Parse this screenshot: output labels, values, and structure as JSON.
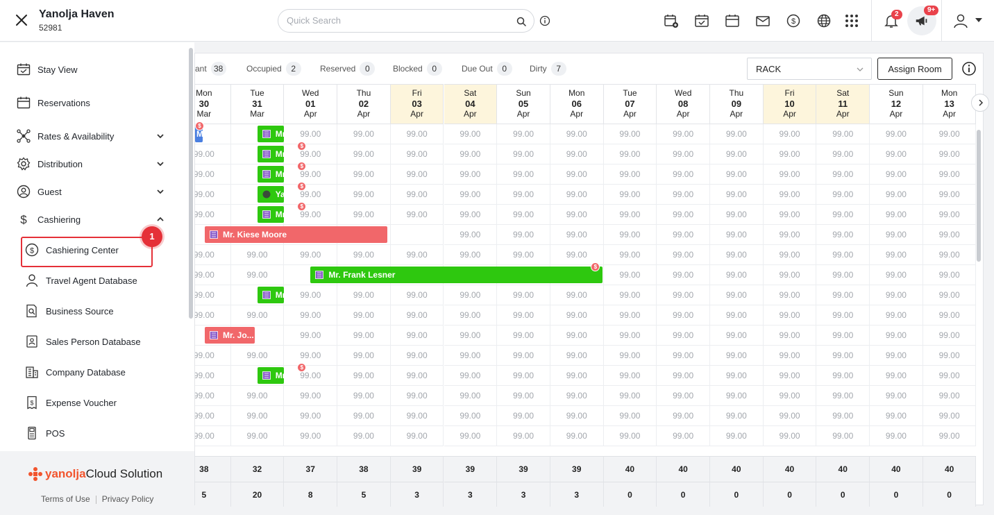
{
  "header": {
    "hotel_name": "Yanolja Haven",
    "hotel_id": "52981",
    "search_placeholder": "Quick Search",
    "notification_count": "2",
    "announcement_count": "9+"
  },
  "sidebar": {
    "items": [
      {
        "label": "Stay View",
        "icon": "calendar-check-icon"
      },
      {
        "label": "Reservations",
        "icon": "calendar-icon"
      },
      {
        "label": "Rates & Availability",
        "icon": "network-icon"
      },
      {
        "label": "Distribution",
        "icon": "gear-icon"
      },
      {
        "label": "Guest",
        "icon": "guest-icon"
      },
      {
        "label": "Cashiering",
        "icon": "dollar-icon"
      }
    ],
    "subitems": [
      {
        "label": "Cashiering Center"
      },
      {
        "label": "Travel Agent Database"
      },
      {
        "label": "Business Source"
      },
      {
        "label": "Sales Person Database"
      },
      {
        "label": "Company Database"
      },
      {
        "label": "Expense Voucher"
      },
      {
        "label": "POS"
      }
    ],
    "step_number": "1",
    "footer": {
      "logo_brand": "yanolja",
      "logo_rest": "Cloud Solution",
      "terms": "Terms of Use",
      "privacy": "Privacy Policy"
    }
  },
  "stats": [
    {
      "label": "ant",
      "count": "38"
    },
    {
      "label": "Occupied",
      "count": "2"
    },
    {
      "label": "Reserved",
      "count": "0"
    },
    {
      "label": "Blocked",
      "count": "0"
    },
    {
      "label": "Due Out",
      "count": "0"
    },
    {
      "label": "Dirty",
      "count": "7"
    }
  ],
  "rate_plan": "RACK",
  "assign_room_label": "Assign Room",
  "dates": [
    {
      "dow": "Mon",
      "day": "30",
      "month": "Mar",
      "weekend": false
    },
    {
      "dow": "Tue",
      "day": "31",
      "month": "Mar",
      "weekend": false
    },
    {
      "dow": "Wed",
      "day": "01",
      "month": "Apr",
      "weekend": false
    },
    {
      "dow": "Thu",
      "day": "02",
      "month": "Apr",
      "weekend": false
    },
    {
      "dow": "Fri",
      "day": "03",
      "month": "Apr",
      "weekend": true
    },
    {
      "dow": "Sat",
      "day": "04",
      "month": "Apr",
      "weekend": true
    },
    {
      "dow": "Sun",
      "day": "05",
      "month": "Apr",
      "weekend": false
    },
    {
      "dow": "Mon",
      "day": "06",
      "month": "Apr",
      "weekend": false
    },
    {
      "dow": "Tue",
      "day": "07",
      "month": "Apr",
      "weekend": false
    },
    {
      "dow": "Wed",
      "day": "08",
      "month": "Apr",
      "weekend": false
    },
    {
      "dow": "Thu",
      "day": "09",
      "month": "Apr",
      "weekend": false
    },
    {
      "dow": "Fri",
      "day": "10",
      "month": "Apr",
      "weekend": true
    },
    {
      "dow": "Sat",
      "day": "11",
      "month": "Apr",
      "weekend": true
    },
    {
      "dow": "Sun",
      "day": "12",
      "month": "Apr",
      "weekend": false
    },
    {
      "dow": "Mon",
      "day": "13",
      "month": "Apr",
      "weekend": false
    }
  ],
  "rate_value": "99.00",
  "first_col_partial": "99.00",
  "bookings": [
    {
      "row": 0,
      "start": 0,
      "span": 0,
      "label": "M",
      "color": "blue"
    },
    {
      "row": 0,
      "start": 1,
      "span": 1,
      "label": "Mr. Sai...",
      "color": "green"
    },
    {
      "row": 1,
      "start": 1,
      "span": 1,
      "label": "Mr. Sai...",
      "color": "green"
    },
    {
      "row": 2,
      "start": 1,
      "span": 1,
      "label": "Mr. Sai...",
      "color": "green"
    },
    {
      "row": 3,
      "start": 1,
      "span": 1,
      "label": "Yanolj...",
      "color": "green"
    },
    {
      "row": 4,
      "start": 1,
      "span": 1,
      "label": "Mr. Lo...",
      "color": "green"
    },
    {
      "row": 5,
      "start": 0,
      "span": 4,
      "label": "Mr. Kiese Moore",
      "color": "red"
    },
    {
      "row": 7,
      "start": 2,
      "span": 6,
      "label": "Mr. Frank Lesner",
      "color": "green"
    },
    {
      "row": 8,
      "start": 1,
      "span": 1,
      "label": "Mr. Kyl...",
      "color": "green"
    },
    {
      "row": 10,
      "start": 0,
      "span": 1,
      "label": "Mr. Jo...",
      "color": "red"
    },
    {
      "row": 12,
      "start": 1,
      "span": 1,
      "label": "Mr. Ji...",
      "color": "green"
    }
  ],
  "totals_row1": [
    "38",
    "32",
    "37",
    "38",
    "39",
    "39",
    "39",
    "39",
    "40",
    "40",
    "40",
    "40",
    "40",
    "40",
    "40"
  ],
  "totals_row2": [
    "5",
    "20",
    "8",
    "5",
    "3",
    "3",
    "3",
    "3",
    "0",
    "0",
    "0",
    "0",
    "0",
    "0",
    "0"
  ],
  "colors": {
    "green": "#2ec80f",
    "red": "#f1676a",
    "accent_red": "#e53038",
    "weekend": "#fdf5dc"
  }
}
